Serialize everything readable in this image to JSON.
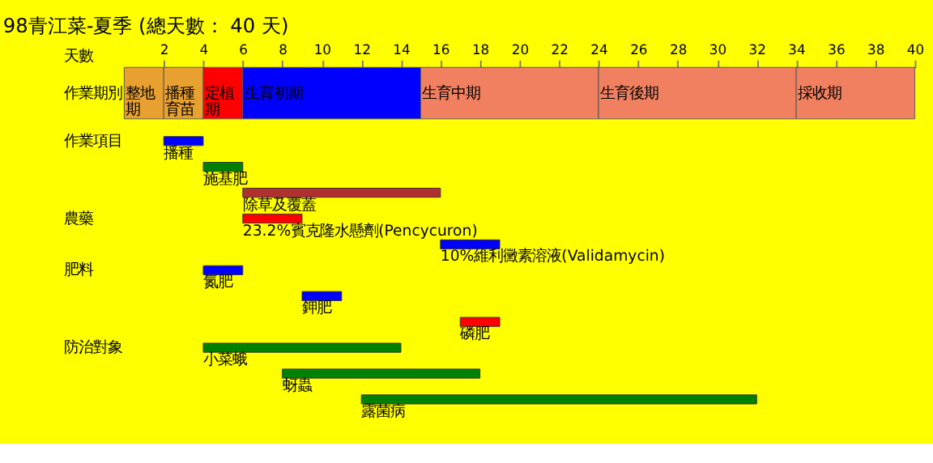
{
  "chart_data": [
    {
      "type": "bar",
      "orientation": "horizontal",
      "stacked": true,
      "title": "98青江菜-夏季 (總天數： 40 天)",
      "xlabel": "天數",
      "categories": [
        "作業期別"
      ],
      "xlim": [
        0,
        40
      ],
      "xticks": [
        2,
        4,
        6,
        8,
        10,
        12,
        14,
        16,
        18,
        20,
        22,
        24,
        26,
        28,
        30,
        32,
        34,
        36,
        38,
        40
      ],
      "series": [
        {
          "name": "整地期",
          "color": "#e8a030",
          "values": [
            2
          ]
        },
        {
          "name": "播種育苗",
          "color": "#e8a030",
          "values": [
            2
          ]
        },
        {
          "name": "定植期",
          "color": "#ff0000",
          "values": [
            2
          ]
        },
        {
          "name": "生育初期",
          "color": "#0000ff",
          "values": [
            9
          ]
        },
        {
          "name": "生育中期",
          "color": "#f08060",
          "values": [
            9
          ]
        },
        {
          "name": "生育後期",
          "color": "#f08060",
          "values": [
            10
          ]
        },
        {
          "name": "採收期",
          "color": "#f08060",
          "values": [
            6
          ]
        }
      ]
    },
    {
      "type": "bar",
      "orientation": "horizontal",
      "categories": [
        "播種",
        "施基肥",
        "除草及覆蓋",
        "23.2%賓克隆水懸劑(Pencycuron)",
        "10%維利黴素溶液(Validamycin)",
        "氮肥",
        "鉀肥",
        "磷肥",
        "小菜蛾",
        "蚜蟲",
        "露菌病"
      ],
      "xlim": [
        0,
        40
      ],
      "tick_labels": false,
      "annotations": [
        "作業項目",
        "農藥",
        "肥料",
        "防治對象"
      ],
      "series": [
        {
          "values": [
            2,
            2,
            10,
            null,
            null,
            null,
            null,
            null,
            null,
            null,
            null
          ],
          "base": [
            2,
            4,
            6,
            null,
            null,
            null,
            null,
            null,
            null,
            null,
            null
          ],
          "colors": [
            "#0000ff",
            "#008000",
            "#b03030",
            null,
            null,
            null,
            null,
            null,
            null,
            null,
            null
          ]
        },
        {
          "values": [
            null,
            null,
            null,
            3,
            3,
            null,
            null,
            null,
            null,
            null,
            null
          ],
          "base": [
            null,
            null,
            null,
            6,
            16,
            null,
            null,
            null,
            null,
            null,
            null
          ],
          "colors": [
            null,
            null,
            null,
            "#ff0000",
            "#0000ff",
            null,
            null,
            null,
            null,
            null,
            null
          ]
        },
        {
          "values": [
            null,
            null,
            null,
            null,
            null,
            2,
            2,
            2,
            null,
            null,
            null
          ],
          "base": [
            null,
            null,
            null,
            null,
            null,
            4,
            9,
            17,
            null,
            null,
            null
          ],
          "colors": [
            null,
            null,
            null,
            null,
            null,
            "#0000ff",
            "#0000ff",
            "#ff0000",
            null,
            null,
            null
          ]
        },
        {
          "values": [
            null,
            null,
            null,
            null,
            null,
            null,
            null,
            null,
            10,
            10,
            20
          ],
          "base": [
            null,
            null,
            null,
            null,
            null,
            null,
            null,
            null,
            4,
            8,
            12
          ],
          "colors": [
            null,
            null,
            null,
            null,
            null,
            null,
            null,
            null,
            "#008000",
            "#008000",
            "#008000"
          ]
        }
      ]
    }
  ]
}
